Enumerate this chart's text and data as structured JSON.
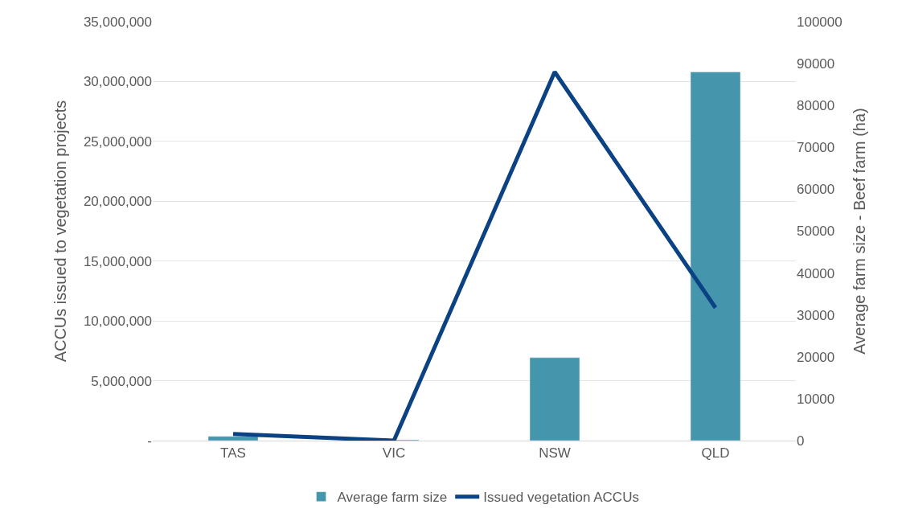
{
  "chart_data": {
    "type": "bar",
    "categories": [
      "TAS",
      "VIC",
      "NSW",
      "QLD"
    ],
    "ylabel": "ACCUs issued to vegetation projects",
    "y2label": "Average farm size - Beef farm (ha)",
    "series": [
      {
        "name": "Average farm size",
        "axis": "y2",
        "color": "#4596ad",
        "values": [
          1000,
          200,
          19800,
          88000
        ]
      },
      {
        "name": "Issued vegetation ACCUs",
        "type": "line",
        "axis": "y",
        "color": "#0b4283",
        "values": [
          560000,
          0,
          30800000,
          11100000
        ]
      }
    ],
    "ylim": [
      0,
      35000000
    ],
    "yticks": [
      {
        "value": 0,
        "label": "-"
      },
      {
        "value": 5000000,
        "label": "5,000,000"
      },
      {
        "value": 10000000,
        "label": "10,000,000"
      },
      {
        "value": 15000000,
        "label": "15,000,000"
      },
      {
        "value": 20000000,
        "label": "20,000,000"
      },
      {
        "value": 25000000,
        "label": "25,000,000"
      },
      {
        "value": 30000000,
        "label": "30,000,000"
      },
      {
        "value": 35000000,
        "label": "35,000,000"
      }
    ],
    "y2lim": [
      0,
      100000
    ],
    "y2ticks": [
      0,
      10000,
      20000,
      30000,
      40000,
      50000,
      60000,
      70000,
      80000,
      90000,
      100000
    ],
    "grid": "y",
    "legend": "bottom",
    "marker": "none",
    "line_style": "solid"
  }
}
